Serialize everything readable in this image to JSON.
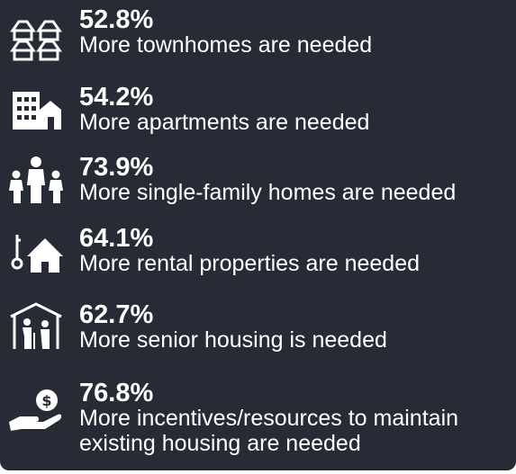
{
  "items": [
    {
      "percent": "52.8%",
      "text": "More townhomes are needed"
    },
    {
      "percent": "54.2%",
      "text": "More apartments are needed"
    },
    {
      "percent": "73.9%",
      "text": "More single-family homes are needed"
    },
    {
      "percent": "64.1%",
      "text": "More rental properties are needed"
    },
    {
      "percent": "62.7%",
      "text": "More senior housing is needed"
    },
    {
      "percent": "76.8%",
      "text": "More incentives/resources to maintain existing housing are needed"
    }
  ]
}
